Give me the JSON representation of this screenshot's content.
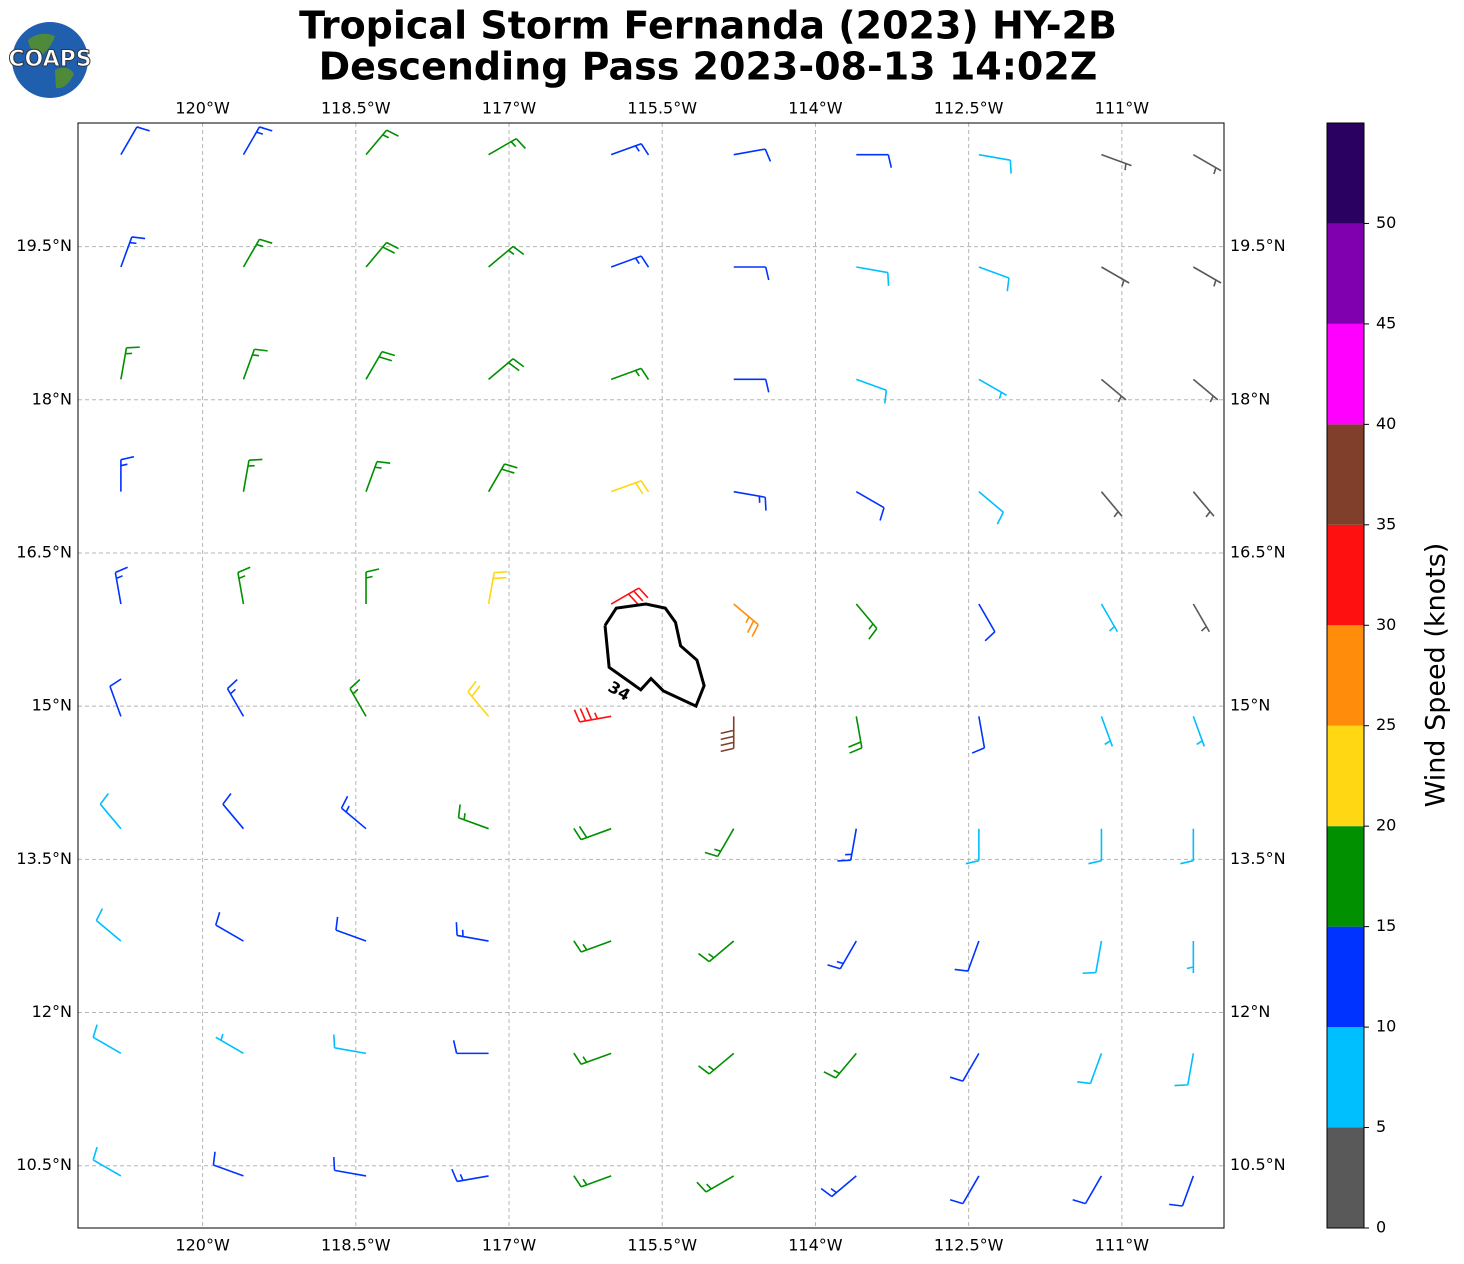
{
  "map_data": {
    "type": "barbs",
    "title": [
      "Tropical Storm Fernanda (2023) HY-2B",
      "Descending Pass 2023-08-13 14:02Z"
    ],
    "logo_text": "COAPS",
    "xlim": [
      -121.22,
      -110.0
    ],
    "ylim": [
      9.89,
      20.71
    ],
    "xticks": [
      {
        "value": -120,
        "label": "120°W"
      },
      {
        "value": -118.5,
        "label": "118.5°W"
      },
      {
        "value": -117,
        "label": "117°W"
      },
      {
        "value": -115.5,
        "label": "115.5°W"
      },
      {
        "value": -114,
        "label": "114°W"
      },
      {
        "value": -112.5,
        "label": "112.5°W"
      },
      {
        "value": -111,
        "label": "111°W"
      }
    ],
    "yticks": [
      {
        "value": 19.5,
        "label": "19.5°N"
      },
      {
        "value": 18,
        "label": "18°N"
      },
      {
        "value": 16.5,
        "label": "16.5°N"
      },
      {
        "value": 15,
        "label": "15°N"
      },
      {
        "value": 13.5,
        "label": "13.5°N"
      },
      {
        "value": 12,
        "label": "12°N"
      },
      {
        "value": 10.5,
        "label": "10.5°N"
      }
    ],
    "grid": true,
    "wind": {
      "lon": [
        -120.8,
        -119.6,
        -118.4,
        -117.2,
        -116.0,
        -114.8,
        -113.6,
        -112.4,
        -111.2,
        -110.3
      ],
      "lat": [
        20.4,
        19.3,
        18.2,
        17.1,
        16.0,
        14.9,
        13.8,
        12.7,
        11.6,
        10.4
      ],
      "speed": [
        [
          12,
          14,
          17,
          16,
          13,
          12,
          11,
          8,
          3,
          3
        ],
        [
          13,
          17,
          18,
          17,
          14,
          12,
          9,
          8,
          4,
          3
        ],
        [
          15,
          17,
          18,
          18,
          16,
          12,
          8,
          7,
          3,
          3
        ],
        [
          14,
          17,
          17,
          18,
          22,
          14,
          11,
          8,
          3,
          3
        ],
        [
          13,
          16,
          17,
          21,
          32,
          26,
          16,
          10,
          6,
          4
        ],
        [
          12,
          14,
          17,
          22,
          34,
          38,
          18,
          10,
          7,
          5
        ],
        [
          9,
          12,
          13,
          16,
          19,
          17,
          14,
          9,
          8,
          8
        ],
        [
          8,
          10,
          12,
          13,
          15,
          17,
          14,
          10,
          8,
          7
        ],
        [
          8,
          7,
          9,
          12,
          16,
          17,
          15,
          12,
          9,
          9
        ],
        [
          8,
          12,
          10,
          13,
          16,
          17,
          13,
          12,
          11,
          10
        ]
      ],
      "direction": [
        [
          30,
          30,
          40,
          60,
          70,
          80,
          90,
          100,
          110,
          120
        ],
        [
          20,
          30,
          40,
          50,
          70,
          90,
          100,
          110,
          120,
          120
        ],
        [
          10,
          20,
          30,
          50,
          70,
          90,
          110,
          120,
          130,
          130
        ],
        [
          0,
          10,
          20,
          30,
          70,
          100,
          120,
          130,
          140,
          140
        ],
        [
          350,
          350,
          0,
          10,
          60,
          130,
          140,
          150,
          150,
          150
        ],
        [
          340,
          330,
          330,
          320,
          260,
          180,
          170,
          170,
          160,
          160
        ],
        [
          320,
          320,
          310,
          290,
          250,
          210,
          190,
          180,
          180,
          180
        ],
        [
          310,
          300,
          290,
          280,
          250,
          230,
          210,
          200,
          190,
          180
        ],
        [
          300,
          300,
          280,
          270,
          250,
          230,
          220,
          210,
          200,
          190
        ],
        [
          300,
          290,
          280,
          260,
          250,
          240,
          230,
          210,
          210,
          200
        ]
      ]
    },
    "contour": {
      "value": 34,
      "lon": [
        -116.06,
        -115.95,
        -115.66,
        -115.47,
        -115.37,
        -115.32,
        -115.16,
        -115.09,
        -115.17,
        -115.49,
        -115.61,
        -115.71,
        -116.02,
        -116.06
      ],
      "lat": [
        15.79,
        15.96,
        16.0,
        15.96,
        15.82,
        15.59,
        15.45,
        15.2,
        15.0,
        15.15,
        15.27,
        15.16,
        15.38,
        15.79
      ]
    },
    "colorbar": {
      "label": "Wind Speed (knots)",
      "bounds": [
        0,
        5,
        10,
        15,
        20,
        25,
        30,
        35,
        40,
        45,
        50,
        55
      ],
      "colors": [
        "#595959",
        "#00bfff",
        "#0033ff",
        "#009000",
        "#ffd712",
        "#ff8c0a",
        "#ff1010",
        "#7f3f2a",
        "#ff00ff",
        "#8000b0",
        "#2a0060"
      ],
      "ticks": [
        0,
        5,
        10,
        15,
        20,
        25,
        30,
        35,
        40,
        45,
        50
      ]
    }
  }
}
